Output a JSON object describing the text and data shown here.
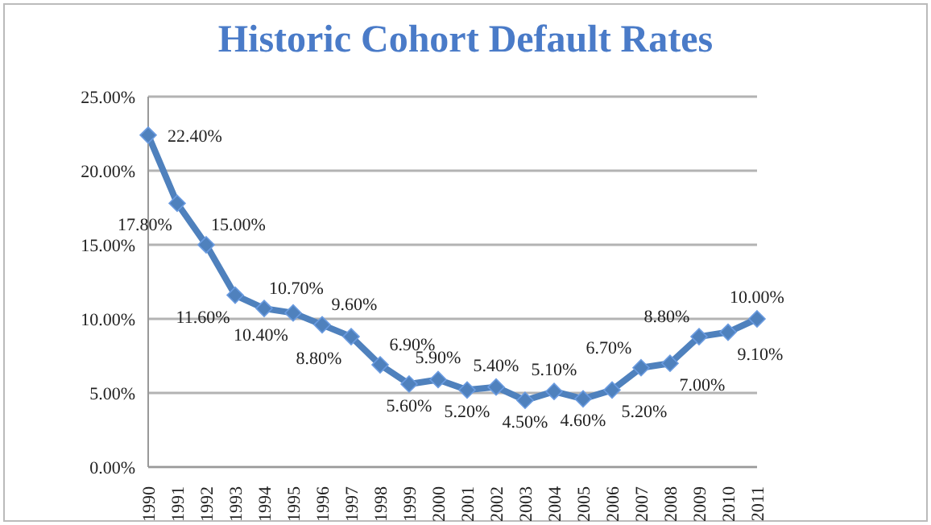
{
  "chart_data": {
    "type": "line",
    "title": "Historic Cohort Default Rates",
    "categories": [
      "1990",
      "1991",
      "1992",
      "1993",
      "1994",
      "1995",
      "1996",
      "1997",
      "1998",
      "1999",
      "2000",
      "2001",
      "2002",
      "2003",
      "2004",
      "2005",
      "2006",
      "2007",
      "2008",
      "2009",
      "2010",
      "2011"
    ],
    "values": [
      22.4,
      17.8,
      15.0,
      11.6,
      10.7,
      10.4,
      9.6,
      8.8,
      6.9,
      5.6,
      5.9,
      5.2,
      5.4,
      4.5,
      5.1,
      4.6,
      5.2,
      6.7,
      7.0,
      8.8,
      9.1,
      10.0
    ],
    "value_labels": [
      "22.40%",
      "17.80%",
      "15.00%",
      "11.60%",
      "10.70%",
      "10.40%",
      "9.60%",
      "8.80%",
      "6.90%",
      "5.60%",
      "5.90%",
      "5.20%",
      "5.40%",
      "4.50%",
      "5.10%",
      "4.60%",
      "5.20%",
      "6.70%",
      "7.00%",
      "8.80%",
      "9.10%",
      "10.00%"
    ],
    "color": "#4f81bd",
    "marker": "diamond",
    "line_style": "solid",
    "grid": "y",
    "legend": false,
    "ylim": [
      0,
      25
    ],
    "yticks": [
      {
        "value": 0,
        "label": "0.00%"
      },
      {
        "value": 5,
        "label": "5.00%"
      },
      {
        "value": 10,
        "label": "10.00%"
      },
      {
        "value": 15,
        "label": "15.00%"
      },
      {
        "value": 20,
        "label": "20.00%"
      },
      {
        "value": 25,
        "label": "25.00%"
      }
    ]
  }
}
